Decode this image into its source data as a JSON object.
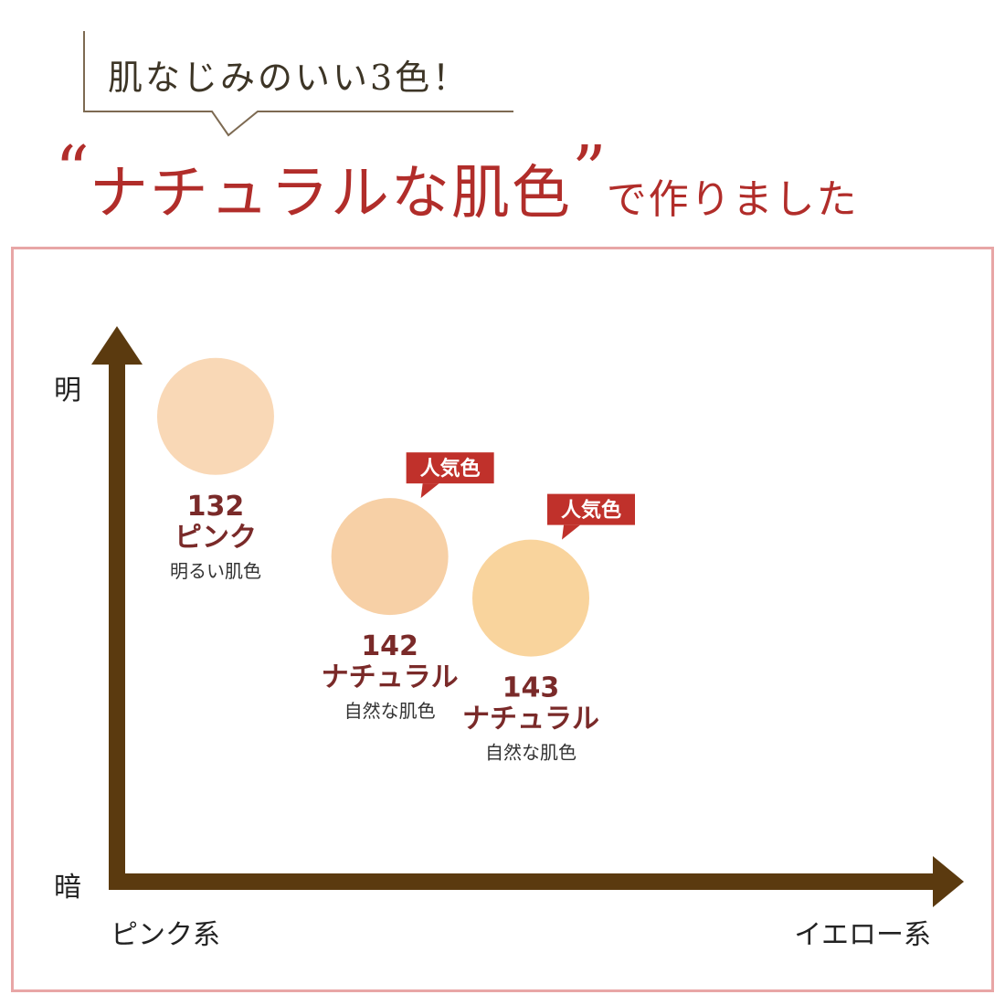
{
  "header": {
    "tagline": "肌なじみのいい3色！",
    "headline": {
      "open_quote": "“",
      "emphasis": "ナチュラルな肌色",
      "close_quote": "”",
      "suffix": "で作りました"
    }
  },
  "chart_data": {
    "type": "scatter",
    "y_axis": {
      "top_label": "明",
      "bottom_label": "暗"
    },
    "x_axis": {
      "left_label": "ピンク系",
      "right_label": "イエロー系"
    },
    "xlim": [
      0,
      100
    ],
    "ylim": [
      0,
      100
    ],
    "points": [
      {
        "code": "132",
        "name": "ピンク",
        "description": "明るい肌色",
        "x": 12,
        "y": 90,
        "color": "#f9d8b6",
        "badge": ""
      },
      {
        "code": "142",
        "name": "ナチュラル",
        "description": "自然な肌色",
        "x": 33,
        "y": 63,
        "color": "#f7d0a6",
        "badge": "人気色"
      },
      {
        "code": "143",
        "name": "ナチュラル",
        "description": "自然な肌色",
        "x": 50,
        "y": 55,
        "color": "#f9d49d",
        "badge": "人気色"
      }
    ],
    "colors": {
      "axis": "#5b3a0f",
      "label": "#7a2a29",
      "badge_bg": "#c0312b",
      "badge_text": "#ffffff",
      "axis_text": "#222222",
      "description_text": "#333333"
    }
  },
  "colors": {
    "headline": "#b12d2a",
    "tagline": "#3d3526",
    "bubble_outline": "#7d6a52",
    "frame_border": "#e8a6a6"
  }
}
